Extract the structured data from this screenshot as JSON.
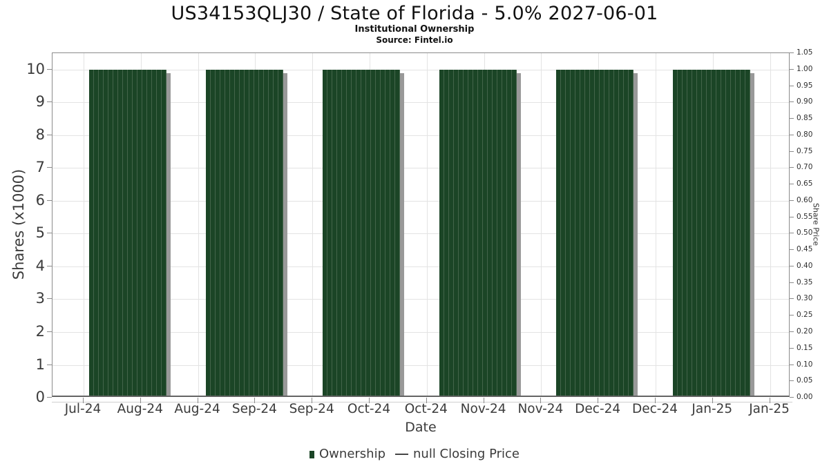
{
  "header": {
    "title": "US34153QLJ30 / State of Florida - 5.0% 2027-06-01",
    "subtitle": "Institutional Ownership",
    "source": "Source: Fintel.io"
  },
  "chart_data": {
    "type": "bar",
    "title": "US34153QLJ30 / State of Florida - 5.0% 2027-06-01",
    "subtitle": "Institutional Ownership",
    "source": "Source: Fintel.io",
    "xlabel": "Date",
    "ylabel_left": "Shares (x1000)",
    "ylabel_right": "Share Price",
    "categories": [
      "Jul-24",
      "Aug-24",
      "Aug-24",
      "Sep-24",
      "Sep-24",
      "Oct-24",
      "Oct-24",
      "Nov-24",
      "Nov-24",
      "Dec-24",
      "Dec-24",
      "Jan-25",
      "Jan-25"
    ],
    "y_left_ticks": [
      0,
      1,
      2,
      3,
      4,
      5,
      6,
      7,
      8,
      9,
      10
    ],
    "y_right_ticks": [
      "0.00",
      "0.05",
      "0.10",
      "0.15",
      "0.20",
      "0.25",
      "0.30",
      "0.35",
      "0.40",
      "0.45",
      "0.50",
      "0.55",
      "0.60",
      "0.65",
      "0.70",
      "0.75",
      "0.80",
      "0.85",
      "0.90",
      "0.95",
      "1.00",
      "1.05"
    ],
    "ylim_left": [
      0,
      10.5
    ],
    "ylim_right": [
      0,
      1.05
    ],
    "grid": true,
    "legend_position": "bottom",
    "series": [
      {
        "name": "Ownership",
        "type": "bar",
        "color": "#1b4526",
        "bar_categories": [
          "Aug-24",
          "Sep-24",
          "Oct-24",
          "Nov-24",
          "Dec-24",
          "Jan-25"
        ],
        "values": [
          10,
          10,
          10,
          10,
          10,
          10
        ]
      },
      {
        "name": "null Closing Price",
        "type": "line",
        "color": "#454545",
        "values": []
      }
    ]
  },
  "legend": {
    "items": [
      {
        "label": "Ownership",
        "marker": "square",
        "color": "#1b4526"
      },
      {
        "label": "null Closing Price",
        "marker": "line",
        "color": "#454545"
      }
    ]
  },
  "colors": {
    "bar": "#1b4526",
    "bar_stripe": "#44654b",
    "bar_shadow": "#999999",
    "grid": "#e3e3e3",
    "spine": "#8a8a8a",
    "axis_text": "#3b3b3b",
    "title_text": "#111111",
    "background": "#ffffff"
  }
}
